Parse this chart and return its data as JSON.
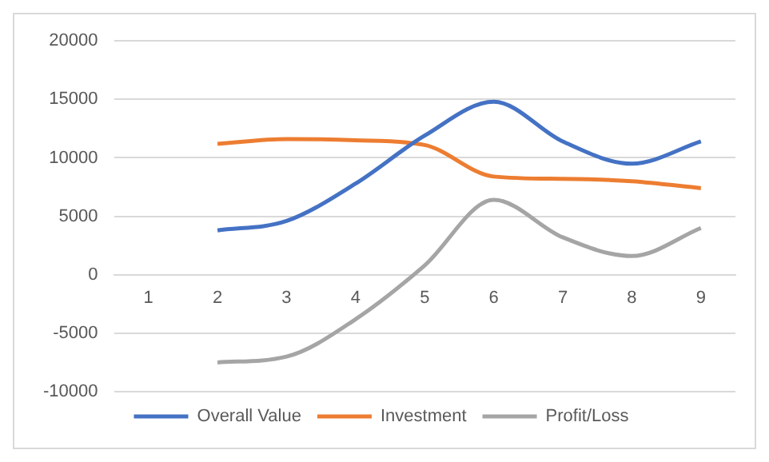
{
  "chart_data": {
    "type": "line",
    "categories": [
      "1",
      "2",
      "3",
      "4",
      "5",
      "6",
      "7",
      "8",
      "9"
    ],
    "series": [
      {
        "name": "Overall Value",
        "color": "#4472c4",
        "values": [
          null,
          3800,
          4600,
          7800,
          11900,
          14800,
          11400,
          9500,
          11400
        ]
      },
      {
        "name": "Investment",
        "color": "#ed7d31",
        "values": [
          null,
          11200,
          11600,
          11500,
          11100,
          8400,
          8200,
          8000,
          7400
        ]
      },
      {
        "name": "Profit/Loss",
        "color": "#a5a5a5",
        "values": [
          null,
          -7500,
          -7000,
          -3800,
          800,
          6400,
          3200,
          1600,
          4000
        ]
      }
    ],
    "ylim": [
      -10000,
      20000
    ],
    "yticks": [
      -10000,
      -5000,
      0,
      5000,
      10000,
      15000,
      20000
    ],
    "grid": "y",
    "legend": "bottom",
    "marker": "none",
    "line_style": "solid"
  }
}
